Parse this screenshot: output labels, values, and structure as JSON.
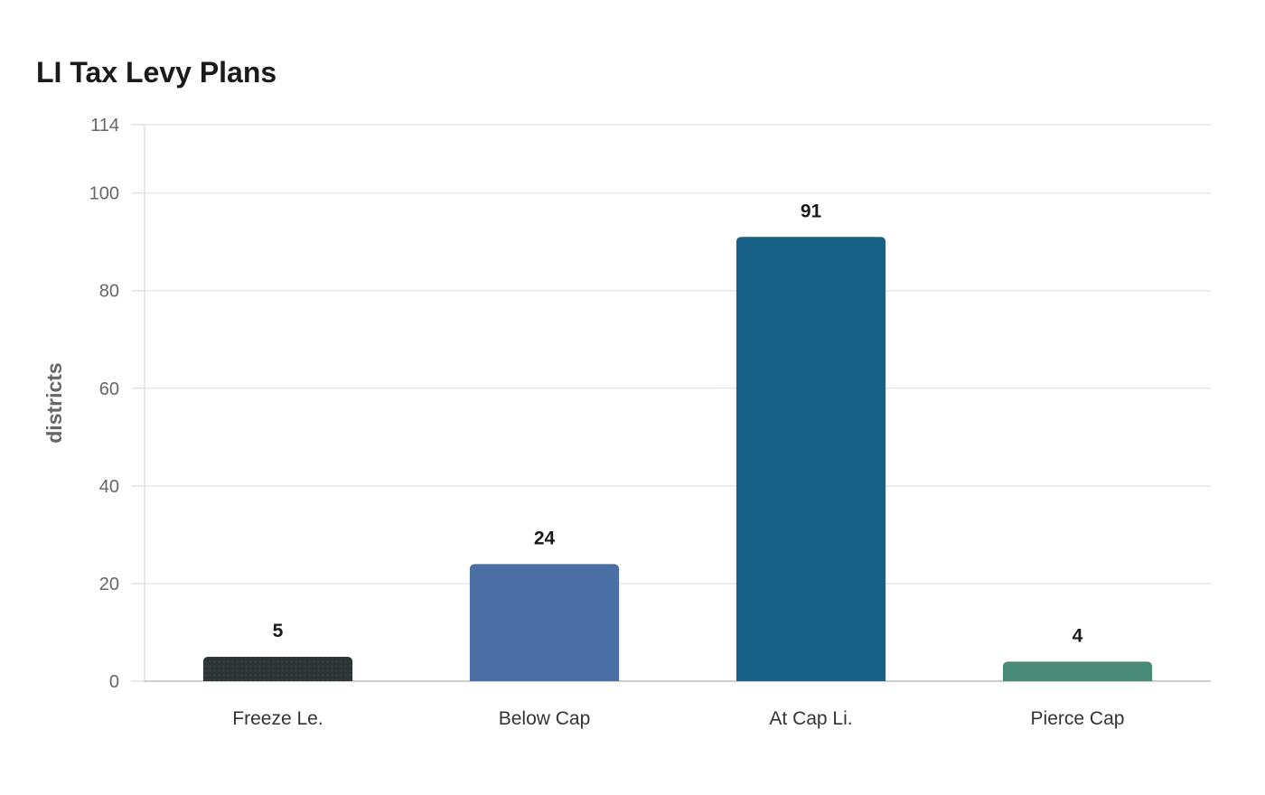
{
  "chart_data": {
    "type": "bar",
    "title": "LI Tax Levy Plans",
    "xlabel": "",
    "ylabel": "districts",
    "categories": [
      "Freeze Le.",
      "Below Cap",
      "At Cap Li.",
      "Pierce Cap"
    ],
    "values": [
      5,
      24,
      91,
      4
    ],
    "colors": [
      "#2d3436",
      "#4a6fa5",
      "#1a6188",
      "#4a8a78"
    ],
    "ylim": [
      0,
      114
    ],
    "yticks": [
      0,
      20,
      40,
      60,
      80,
      100,
      114
    ],
    "grid": true,
    "legend": "none"
  }
}
